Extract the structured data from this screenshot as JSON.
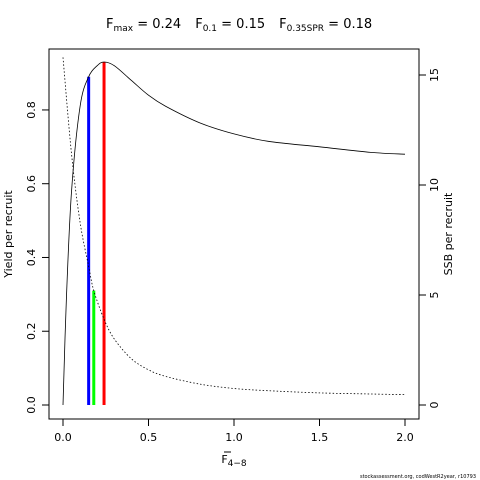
{
  "chart_data": {
    "type": "line",
    "title": {
      "fmax_label": "F",
      "fmax_sub": "max",
      "fmax_value": " = 0.24",
      "f01_label": "F",
      "f01_sub": "0.1",
      "f01_value": " = 0.15",
      "fspr_label": "F",
      "fspr_sub": "0.35SPR",
      "fspr_value": " = 0.18"
    },
    "xlabel": {
      "main": "F",
      "sub": "4−8"
    },
    "ylabel": "Yield per recruit",
    "y2label": "SSB per recruit",
    "xlim": [
      0,
      2.0
    ],
    "ylim": [
      0,
      0.93
    ],
    "y2lim": [
      0,
      15.8
    ],
    "x_ticks": [
      "0.0",
      "0.5",
      "1.0",
      "1.5",
      "2.0"
    ],
    "y_ticks": [
      "0.0",
      "0.2",
      "0.4",
      "0.6",
      "0.8"
    ],
    "y2_ticks": [
      "0",
      "5",
      "10",
      "15"
    ],
    "series": [
      {
        "axis": "left",
        "style": "solid",
        "x": [
          0,
          0.02,
          0.05,
          0.1,
          0.15,
          0.2,
          0.24,
          0.3,
          0.4,
          0.5,
          0.6,
          0.8,
          1.0,
          1.2,
          1.5,
          1.8,
          2.0
        ],
        "y": [
          0.0,
          0.29,
          0.58,
          0.81,
          0.89,
          0.92,
          0.93,
          0.92,
          0.88,
          0.84,
          0.81,
          0.765,
          0.735,
          0.715,
          0.7,
          0.685,
          0.68
        ]
      },
      {
        "axis": "right",
        "style": "dotted",
        "x": [
          0,
          0.05,
          0.1,
          0.15,
          0.18,
          0.24,
          0.3,
          0.4,
          0.5,
          0.6,
          0.8,
          1.0,
          1.2,
          1.5,
          1.8,
          2.0
        ],
        "y": [
          15.8,
          11.4,
          8.3,
          6.3,
          5.2,
          3.9,
          3.0,
          2.1,
          1.6,
          1.3,
          0.95,
          0.75,
          0.65,
          0.55,
          0.5,
          0.47
        ]
      }
    ],
    "reference_lines": [
      {
        "x": 0.15,
        "y_top": 0.89,
        "axis": "left",
        "color": "#0000ff"
      },
      {
        "x": 0.18,
        "y_top": 5.2,
        "axis": "right",
        "color": "#00ff00"
      },
      {
        "x": 0.24,
        "y_top": 0.93,
        "axis": "left",
        "color": "#ff0000"
      }
    ],
    "source": "stockassessment.org, codWestR2year, r10793"
  }
}
